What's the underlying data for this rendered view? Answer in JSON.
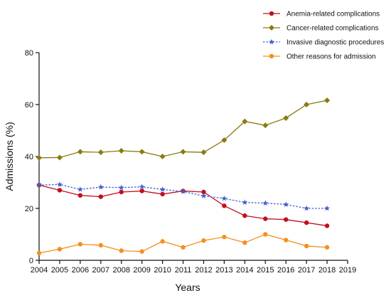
{
  "chart_data": {
    "type": "line",
    "xlabel": "Years",
    "ylabel": "Admissions (%)",
    "xlim": [
      2004,
      2019
    ],
    "ylim": [
      0,
      80
    ],
    "x_ticks": [
      "2004",
      "2005",
      "2006",
      "2007",
      "2008",
      "2009",
      "2010",
      "2011",
      "2012",
      "2013",
      "2014",
      "2015",
      "2016",
      "2017",
      "2018",
      "2019"
    ],
    "y_ticks": [
      "0",
      "20",
      "40",
      "60",
      "80"
    ],
    "grid": false,
    "legend_position": "top-right",
    "x": [
      2004,
      2005,
      2006,
      2007,
      2008,
      2009,
      2010,
      2011,
      2012,
      2013,
      2014,
      2015,
      2016,
      2017,
      2018
    ],
    "series": [
      {
        "name": "Anemia-related complications",
        "color": "#c0101e",
        "marker": "circle",
        "line": "solid",
        "values": [
          29,
          27,
          25,
          24.5,
          26.3,
          26.7,
          25.5,
          26.7,
          26.3,
          21,
          17.2,
          16,
          15.7,
          14.5,
          13.3
        ]
      },
      {
        "name": "Cancer-related complications",
        "color": "#8a7a10",
        "marker": "diamond",
        "line": "solid",
        "values": [
          39.5,
          39.6,
          41.8,
          41.6,
          42.2,
          41.8,
          40,
          41.8,
          41.6,
          46.3,
          53.5,
          52,
          54.8,
          60,
          61.6
        ]
      },
      {
        "name": "Invasive diagnostic procedures",
        "color": "#4060d0",
        "marker": "star",
        "line": "dashed",
        "values": [
          29,
          29.2,
          27.3,
          28.2,
          28,
          28.3,
          27.3,
          26.5,
          24.8,
          23.8,
          22.3,
          22,
          21.5,
          20,
          20
        ]
      },
      {
        "name": "Other reasons for admission",
        "color": "#f5901e",
        "marker": "circle",
        "line": "solid",
        "values": [
          2.8,
          4.3,
          6.2,
          5.8,
          3.7,
          3.4,
          7.3,
          5,
          7.6,
          9,
          6.8,
          10,
          7.8,
          5.5,
          5
        ]
      }
    ]
  }
}
